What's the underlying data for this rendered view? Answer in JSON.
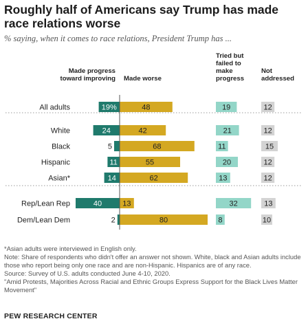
{
  "title": "Roughly half of Americans say Trump has made race relations worse",
  "subtitle": "% saying, when it comes to race relations, President Trump has ...",
  "colors": {
    "progress": "#1f7a6c",
    "worse": "#d4a822",
    "tried": "#93d6c8",
    "not_addressed": "#d3d3d3"
  },
  "chart_data": {
    "type": "bar",
    "categories": [
      "All adults",
      "White",
      "Black",
      "Hispanic",
      "Asian*",
      "Rep/Lean Rep",
      "Dem/Lean Dem"
    ],
    "value_labels": {
      "progress": [
        "19%",
        "24",
        "5",
        "11",
        "14",
        "40",
        "2"
      ]
    },
    "series": [
      {
        "name": "Made progress toward improving",
        "values": [
          19,
          24,
          5,
          11,
          14,
          40,
          2
        ]
      },
      {
        "name": "Made worse",
        "values": [
          48,
          42,
          68,
          55,
          62,
          13,
          80
        ]
      },
      {
        "name": "Tried but failed to make progress",
        "values": [
          19,
          21,
          11,
          20,
          13,
          32,
          8
        ]
      },
      {
        "name": "Not addressed",
        "values": [
          12,
          12,
          15,
          12,
          12,
          13,
          10
        ]
      }
    ],
    "column_headers": {
      "progress": "Made progress toward improving",
      "worse": "Made worse",
      "tried": "Tried but failed to make progress",
      "not_addressed": "Not addressed"
    }
  },
  "notes": [
    "*Asian adults were interviewed in English only.",
    "Note: Share of respondents who didn't offer an answer not shown. White, black and Asian adults include those who report being only one race and are non-Hispanic. Hispanics are of any race.",
    "Source: Survey of U.S. adults conducted June 4-10, 2020.",
    "\"Amid Protests, Majorities Across Racial and Ethnic Groups Express Support for the Black Lives Matter Movement\""
  ],
  "source_brand": "PEW RESEARCH CENTER"
}
